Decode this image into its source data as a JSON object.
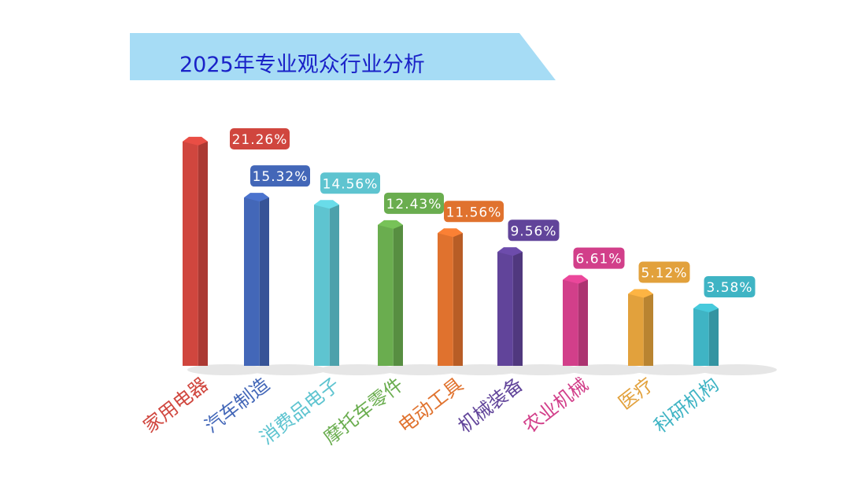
{
  "chart_data": {
    "type": "bar",
    "title": "2025年专业观众行业分析",
    "categories": [
      "家用电器",
      "汽车制造",
      "消费品电子",
      "摩托车零件",
      "电动工具",
      "机械装备",
      "农业机械",
      "医疗",
      "科研机构"
    ],
    "values": [
      21.26,
      15.32,
      14.56,
      12.43,
      11.56,
      9.56,
      6.61,
      5.12,
      3.58
    ],
    "data_labels": [
      "21.26%",
      "15.32%",
      "14.56%",
      "12.43%",
      "11.56%",
      "9.56%",
      "6.61%",
      "5.12%",
      "3.58%"
    ],
    "colors": [
      "#d0463e",
      "#4367b8",
      "#5ec4d0",
      "#6aad4f",
      "#e0722e",
      "#61449a",
      "#d23f8a",
      "#e2a13c",
      "#3fb4c4"
    ],
    "unit": "%",
    "grid": false,
    "legend": "none"
  },
  "banner_color": "#a6dcf5",
  "title_color": "#1a22c8"
}
